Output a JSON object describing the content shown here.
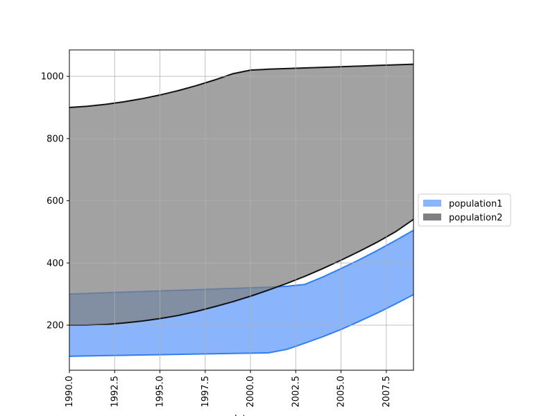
{
  "chart_data": {
    "type": "area",
    "title": "",
    "xlabel": "date",
    "ylabel": "",
    "xlim": [
      1990,
      2009
    ],
    "ylim": [
      55,
      1085
    ],
    "grid": true,
    "legend_position": "outside-right",
    "x_ticks": [
      1990.0,
      1992.5,
      1995.0,
      1997.5,
      2000.0,
      2002.5,
      2005.0,
      2007.5
    ],
    "x_tick_labels": [
      "1990.0",
      "1992.5",
      "1995.0",
      "1997.5",
      "2000.0",
      "2002.5",
      "2005.0",
      "2007.5"
    ],
    "y_ticks": [
      200,
      400,
      600,
      800,
      1000
    ],
    "y_tick_labels": [
      "200",
      "400",
      "600",
      "800",
      "1000"
    ],
    "x": [
      1990,
      1991,
      1992,
      1993,
      1994,
      1995,
      1996,
      1997,
      1998,
      1999,
      2000,
      2001,
      2002,
      2003,
      2004,
      2005,
      2006,
      2007,
      2008,
      2009
    ],
    "series": [
      {
        "name": "population1",
        "fill_color": "#8ab4fc",
        "line_color": "#2f7ef2",
        "lower": [
          100,
          101,
          102,
          103,
          104,
          105,
          106,
          107,
          108,
          109,
          110,
          111,
          122,
          142,
          163,
          186,
          212,
          239,
          268,
          298
        ],
        "upper": [
          300,
          302,
          304,
          306,
          308,
          310,
          312,
          314,
          316,
          318,
          320,
          322,
          325,
          331,
          355,
          382,
          410,
          440,
          472,
          505
        ]
      },
      {
        "name": "population2",
        "fill_color": "#808080",
        "line_color": "#111111",
        "fill_opacity": 0.73,
        "lower": [
          200,
          200,
          202,
          207,
          213,
          221,
          231,
          244,
          259,
          275,
          293,
          313,
          334,
          357,
          382,
          409,
          437,
          467,
          500,
          540
        ],
        "upper": [
          900,
          904,
          910,
          918,
          928,
          940,
          954,
          970,
          988,
          1008,
          1020,
          1023,
          1025,
          1027,
          1029,
          1031,
          1033,
          1035,
          1037,
          1039
        ]
      }
    ]
  }
}
